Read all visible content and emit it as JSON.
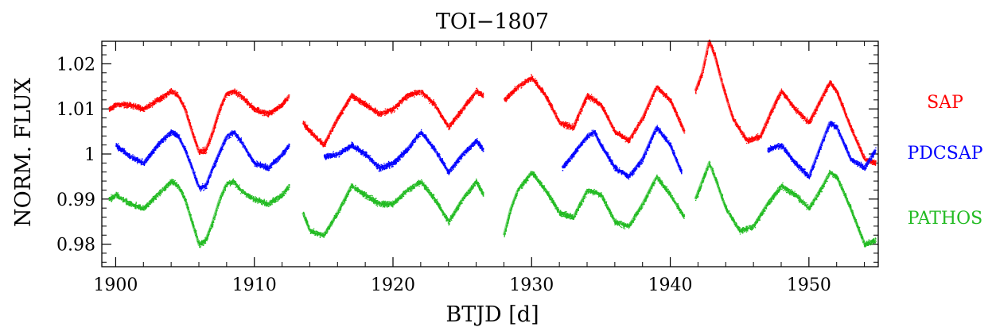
{
  "chart_data": {
    "type": "scatter",
    "title": "TOI−1807",
    "xlabel": "BTJD [d]",
    "ylabel": "NORM. FLUX",
    "xlim": [
      1899,
      1955
    ],
    "ylim": [
      0.975,
      1.025
    ],
    "xticks": [
      1900,
      1910,
      1920,
      1930,
      1940,
      1950
    ],
    "yticks": [
      0.98,
      0.99,
      1,
      1.01,
      1.02
    ],
    "ytick_labels": [
      "0.98",
      "0.99",
      "1",
      "1.01",
      "1.02"
    ],
    "grid": false,
    "legend_position": "right",
    "series": [
      {
        "name": "SAP",
        "color": "#ff0000",
        "segments": [
          {
            "x": [
              1899.5,
              1900,
              1901,
              1902,
              1903,
              1904,
              1904.5,
              1905,
              1905.5,
              1906,
              1906.5,
              1907,
              1907.5,
              1908,
              1908.5,
              1909,
              1910,
              1911,
              1912,
              1912.5
            ],
            "y": [
              1.01,
              1.011,
              1.011,
              1.01,
              1.012,
              1.014,
              1.013,
              1.01,
              1.005,
              1.0005,
              1.001,
              1.005,
              1.01,
              1.0135,
              1.014,
              1.013,
              1.01,
              1.009,
              1.011,
              1.013
            ]
          },
          {
            "x": [
              1913.5,
              1914,
              1915,
              1916,
              1917,
              1918,
              1919,
              1920,
              1921,
              1922,
              1923,
              1924,
              1925,
              1926,
              1926.5
            ],
            "y": [
              1.007,
              1.005,
              1.002,
              1.008,
              1.013,
              1.011,
              1.009,
              1.01,
              1.013,
              1.014,
              1.011,
              1.006,
              1.01,
              1.014,
              1.013
            ]
          },
          {
            "x": [
              1928,
              1929,
              1930,
              1931,
              1932,
              1933,
              1934,
              1935,
              1936,
              1937,
              1938,
              1939,
              1940,
              1941
            ],
            "y": [
              1.012,
              1.015,
              1.017,
              1.013,
              1.007,
              1.006,
              1.013,
              1.011,
              1.005,
              1.003,
              1.008,
              1.015,
              1.012,
              1.005
            ]
          },
          {
            "x": [
              1941.8,
              1942.3,
              1942.8,
              1943.2,
              1943.8,
              1944.5,
              1945.5,
              1946.5,
              1947.5,
              1948,
              1949,
              1950,
              1951,
              1951.5,
              1952,
              1953,
              1954,
              1954.8
            ],
            "y": [
              1.014,
              1.018,
              1.025,
              1.022,
              1.015,
              1.008,
              1.003,
              1.004,
              1.011,
              1.014,
              1.01,
              1.007,
              1.013,
              1.016,
              1.014,
              1.006,
              0.999,
              0.998
            ]
          }
        ]
      },
      {
        "name": "PDCSAP",
        "color": "#0000ff",
        "segments": [
          {
            "x": [
              1900,
              1901,
              1902,
              1903,
              1904,
              1904.5,
              1905,
              1905.5,
              1906,
              1906.5,
              1907,
              1908,
              1908.5,
              1909,
              1910,
              1911,
              1912,
              1912.5
            ],
            "y": [
              1.002,
              0.9995,
              0.998,
              1.002,
              1.005,
              1.004,
              1.001,
              0.997,
              0.9925,
              0.993,
              0.997,
              1.004,
              1.005,
              1.003,
              0.998,
              0.997,
              1.0,
              1.002
            ]
          },
          {
            "x": [
              1915,
              1916,
              1917,
              1918,
              1919,
              1920,
              1921,
              1922,
              1923,
              1924,
              1925,
              1926,
              1926.5
            ],
            "y": [
              0.9995,
              1.0,
              1.002,
              1.0,
              0.997,
              0.998,
              1.001,
              1.005,
              1.001,
              0.996,
              1.0,
              1.003,
              1.001
            ]
          },
          {
            "x": [
              1932.2,
              1933,
              1934,
              1934.5,
              1935,
              1936,
              1937,
              1938,
              1939,
              1940,
              1940.8
            ],
            "y": [
              0.997,
              1.0,
              1.004,
              1.005,
              1.002,
              0.997,
              0.995,
              0.999,
              1.006,
              1.002,
              0.996
            ]
          },
          {
            "x": [
              1947,
              1948,
              1949,
              1950,
              1951,
              1951.5,
              1952,
              1953,
              1954,
              1954.8
            ],
            "y": [
              1.001,
              1.002,
              0.998,
              0.995,
              1.003,
              1.007,
              1.006,
              0.999,
              0.997,
              1.001
            ]
          }
        ]
      },
      {
        "name": "PATHOS",
        "color": "#22bb22",
        "segments": [
          {
            "x": [
              1899.5,
              1900,
              1901,
              1902,
              1903,
              1904,
              1904.5,
              1905,
              1905.5,
              1906,
              1906.5,
              1907,
              1907.5,
              1908,
              1908.5,
              1909,
              1910,
              1911,
              1912,
              1912.5
            ],
            "y": [
              0.99,
              0.991,
              0.989,
              0.988,
              0.991,
              0.994,
              0.993,
              0.99,
              0.985,
              0.98,
              0.981,
              0.985,
              0.99,
              0.9935,
              0.994,
              0.992,
              0.99,
              0.989,
              0.991,
              0.993
            ]
          },
          {
            "x": [
              1913.5,
              1914,
              1915,
              1916,
              1917,
              1918,
              1919,
              1920,
              1921,
              1922,
              1923,
              1924,
              1925,
              1926,
              1926.5
            ],
            "y": [
              0.987,
              0.983,
              0.982,
              0.987,
              0.993,
              0.991,
              0.989,
              0.989,
              0.992,
              0.994,
              0.99,
              0.985,
              0.99,
              0.994,
              0.991
            ]
          },
          {
            "x": [
              1928,
              1928.5,
              1929,
              1930,
              1931,
              1932,
              1933,
              1934,
              1935,
              1936,
              1937,
              1938,
              1939,
              1940,
              1941
            ],
            "y": [
              0.982,
              0.988,
              0.992,
              0.996,
              0.992,
              0.987,
              0.986,
              0.992,
              0.991,
              0.985,
              0.984,
              0.989,
              0.995,
              0.991,
              0.986
            ]
          },
          {
            "x": [
              1941.8,
              1942.3,
              1942.8,
              1943.2,
              1944,
              1945,
              1946,
              1947,
              1948,
              1949,
              1950,
              1951,
              1951.5,
              1952,
              1953,
              1954,
              1954.8
            ],
            "y": [
              0.99,
              0.994,
              0.998,
              0.995,
              0.988,
              0.983,
              0.984,
              0.989,
              0.993,
              0.991,
              0.988,
              0.993,
              0.996,
              0.995,
              0.988,
              0.98,
              0.981
            ]
          }
        ]
      }
    ]
  }
}
